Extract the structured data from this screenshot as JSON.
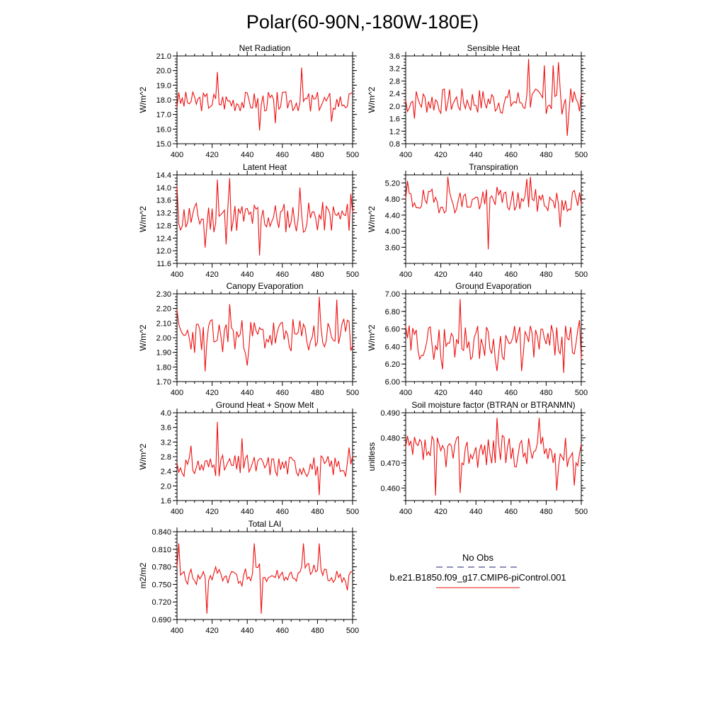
{
  "figure_title": "Polar(60-90N,-180W-180E)",
  "colors": {
    "model_line": "#ee1111",
    "obs_line": "#22227a",
    "axis": "#000000"
  },
  "chart_data": [
    {
      "type": "line",
      "title": "Net Radiation",
      "ylabel": "W/m^2",
      "xlim": [
        400,
        500
      ],
      "ylim": [
        15.0,
        21.0
      ],
      "xticks": [
        400,
        420,
        440,
        460,
        480,
        500
      ],
      "yticks": [
        "15.0",
        "16.0",
        "17.0",
        "18.0",
        "19.0",
        "20.0",
        "21.0"
      ],
      "ytick_step_minor": 0.2,
      "base": 17.9,
      "amp": 0.7,
      "seed": 3,
      "spikes": [
        [
          423,
          19.9
        ],
        [
          447,
          15.9
        ],
        [
          456,
          16.4
        ],
        [
          471,
          20.2
        ],
        [
          476,
          17.2
        ],
        [
          488,
          16.5
        ]
      ]
    },
    {
      "type": "line",
      "title": "Sensible Heat",
      "ylabel": "W/m^2",
      "xlim": [
        400,
        500
      ],
      "ylim": [
        0.8,
        3.6
      ],
      "xticks": [
        400,
        420,
        440,
        460,
        480,
        500
      ],
      "yticks": [
        "0.8",
        "1.2",
        "1.6",
        "2.0",
        "2.4",
        "2.8",
        "3.2",
        "3.6"
      ],
      "ytick_step_minor": 0.1,
      "base": 2.15,
      "amp": 0.42,
      "seed": 7,
      "spikes": [
        [
          405,
          1.6
        ],
        [
          470,
          3.5
        ],
        [
          479,
          3.3
        ],
        [
          484,
          3.3
        ],
        [
          487,
          3.4
        ],
        [
          492,
          1.05
        ]
      ]
    },
    {
      "type": "line",
      "title": "Latent Heat",
      "ylabel": "W/m^2",
      "xlim": [
        400,
        500
      ],
      "ylim": [
        11.6,
        14.4
      ],
      "xticks": [
        400,
        420,
        440,
        460,
        480,
        500
      ],
      "yticks": [
        "11.6",
        "12.0",
        "12.4",
        "12.8",
        "13.2",
        "13.6",
        "14.0",
        "14.4"
      ],
      "ytick_step_minor": 0.1,
      "base": 13.05,
      "amp": 0.5,
      "seed": 11,
      "spikes": [
        [
          400,
          14.05
        ],
        [
          416,
          12.1
        ],
        [
          423,
          14.25
        ],
        [
          428,
          12.2
        ],
        [
          430,
          14.3
        ],
        [
          447,
          11.85
        ],
        [
          470,
          14.0
        ],
        [
          499,
          13.8
        ]
      ]
    },
    {
      "type": "line",
      "title": "Transpiration",
      "ylabel": "W/m^2",
      "xlim": [
        400,
        500
      ],
      "ylim": [
        3.2,
        5.4
      ],
      "xticks": [
        400,
        420,
        440,
        460,
        480,
        500
      ],
      "yticks": [
        "3.60",
        "4.00",
        "4.40",
        "4.80",
        "5.20"
      ],
      "ytick_step_minor": 0.1,
      "base": 4.75,
      "amp": 0.3,
      "seed": 19,
      "spikes": [
        [
          401,
          5.25
        ],
        [
          424,
          5.35
        ],
        [
          447,
          3.55
        ],
        [
          452,
          5.1
        ],
        [
          469,
          5.3
        ],
        [
          471,
          5.35
        ],
        [
          488,
          4.1
        ]
      ]
    },
    {
      "type": "line",
      "title": "Canopy Evaporation",
      "ylabel": "W/m^2",
      "xlim": [
        400,
        500
      ],
      "ylim": [
        1.7,
        2.3
      ],
      "xticks": [
        400,
        420,
        440,
        460,
        480,
        500
      ],
      "yticks": [
        "1.70",
        "1.80",
        "1.90",
        "2.00",
        "2.10",
        "2.20",
        "2.30"
      ],
      "ytick_step_minor": 0.02,
      "base": 2.01,
      "amp": 0.12,
      "seed": 23,
      "spikes": [
        [
          400,
          2.19
        ],
        [
          416,
          1.77
        ],
        [
          430,
          2.23
        ],
        [
          440,
          1.81
        ],
        [
          481,
          2.28
        ],
        [
          491,
          2.26
        ]
      ]
    },
    {
      "type": "line",
      "title": "Ground Evaporation",
      "ylabel": "W/m^2",
      "xlim": [
        400,
        500
      ],
      "ylim": [
        6.0,
        7.0
      ],
      "xticks": [
        400,
        420,
        440,
        460,
        480,
        500
      ],
      "yticks": [
        "6.00",
        "6.20",
        "6.40",
        "6.60",
        "6.80",
        "7.00"
      ],
      "ytick_step_minor": 0.05,
      "base": 6.45,
      "amp": 0.2,
      "seed": 29,
      "spikes": [
        [
          421,
          6.14
        ],
        [
          431,
          6.94
        ],
        [
          452,
          6.12
        ],
        [
          466,
          6.12
        ],
        [
          490,
          6.1
        ],
        [
          499,
          6.7
        ]
      ]
    },
    {
      "type": "line",
      "title": "Ground Heat + Snow Melt",
      "ylabel": "W/m^2",
      "xlim": [
        400,
        500
      ],
      "ylim": [
        1.6,
        4.0
      ],
      "xticks": [
        400,
        420,
        440,
        460,
        480,
        500
      ],
      "yticks": [
        "1.6",
        "2.0",
        "2.4",
        "2.8",
        "3.2",
        "3.6",
        "4.0"
      ],
      "ytick_step_minor": 0.1,
      "base": 2.55,
      "amp": 0.3,
      "seed": 31,
      "spikes": [
        [
          408,
          3.1
        ],
        [
          423,
          3.75
        ],
        [
          437,
          3.3
        ],
        [
          481,
          1.75
        ],
        [
          498,
          3.05
        ]
      ]
    },
    {
      "type": "line",
      "title": "Soil moisture factor (BTRAN or BTRANMN)",
      "ylabel": "unitless",
      "xlim": [
        400,
        500
      ],
      "ylim": [
        0.455,
        0.49
      ],
      "xticks": [
        400,
        420,
        440,
        460,
        480,
        500
      ],
      "yticks": [
        "0.460",
        "0.470",
        "0.480",
        "0.490"
      ],
      "ytick_step_minor": 0.002,
      "base": 0.4745,
      "amp": 0.0065,
      "seed": 37,
      "spikes": [
        [
          417,
          0.457
        ],
        [
          431,
          0.458
        ],
        [
          452,
          0.488
        ],
        [
          476,
          0.488
        ],
        [
          486,
          0.459
        ],
        [
          496,
          0.461
        ]
      ]
    },
    {
      "type": "line",
      "title": "Total LAI",
      "ylabel": "m2/m2",
      "xlim": [
        400,
        500
      ],
      "ylim": [
        0.69,
        0.84
      ],
      "xticks": [
        400,
        420,
        440,
        460,
        480,
        500
      ],
      "yticks": [
        "0.690",
        "0.720",
        "0.750",
        "0.780",
        "0.810",
        "0.840"
      ],
      "ytick_step_minor": 0.006,
      "base": 0.765,
      "amp": 0.025,
      "seed": 41,
      "smooth": true,
      "spikes": [
        [
          401,
          0.82
        ],
        [
          417,
          0.7
        ],
        [
          444,
          0.82
        ],
        [
          448,
          0.7
        ],
        [
          472,
          0.82
        ],
        [
          481,
          0.82
        ],
        [
          497,
          0.74
        ]
      ]
    }
  ],
  "legend": {
    "obs_label": "No Obs",
    "case_label": "b.e21.B1850.f09_g17.CMIP6-piControl.001"
  }
}
